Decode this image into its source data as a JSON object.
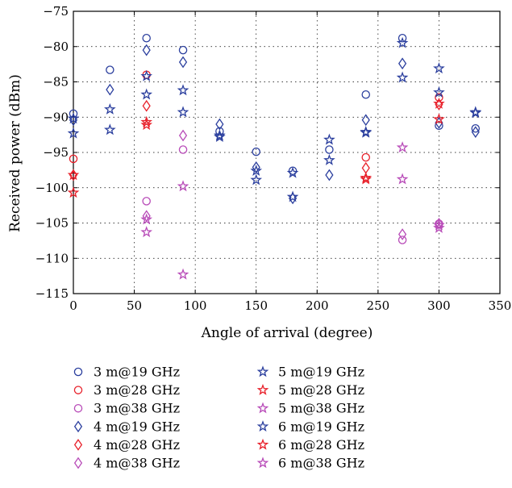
{
  "chart_data": {
    "type": "scatter",
    "xlabel": "Angle of arrival (degree)",
    "ylabel": "Received power (dBm)",
    "xlim": [
      0,
      350
    ],
    "ylim": [
      -115,
      -75
    ],
    "xticks": [
      "0",
      "50",
      "100",
      "150",
      "200",
      "250",
      "300",
      "350"
    ],
    "yticks": [
      "−75",
      "−80",
      "−85",
      "−90",
      "−95",
      "−100",
      "−105",
      "−110",
      "−115"
    ],
    "grid": "dotted",
    "legend_position": "bottom",
    "series": [
      {
        "name": "3 m@19 GHz",
        "marker": "circle",
        "color": "#2b3f9e",
        "points": [
          [
            0,
            -89.5
          ],
          [
            30,
            -83.3
          ],
          [
            60,
            -78.8
          ],
          [
            90,
            -80.5
          ],
          [
            120,
            -92
          ],
          [
            150,
            -94.9
          ],
          [
            180,
            -97.6
          ],
          [
            210,
            -94.6
          ],
          [
            240,
            -86.8
          ],
          [
            270,
            -78.8
          ],
          [
            300,
            -91.2
          ],
          [
            330,
            -91.6
          ]
        ]
      },
      {
        "name": "3 m@28 GHz",
        "marker": "circle",
        "color": "#e8202a",
        "points": [
          [
            0,
            -95.9
          ],
          [
            60,
            -84
          ],
          [
            240,
            -95.7
          ],
          [
            300,
            -87.2
          ]
        ]
      },
      {
        "name": "3 m@38 GHz",
        "marker": "circle",
        "color": "#b84bb8",
        "points": [
          [
            60,
            -101.9
          ],
          [
            90,
            -94.6
          ],
          [
            270,
            -107.4
          ],
          [
            300,
            -105.1
          ]
        ]
      },
      {
        "name": "4 m@19 GHz",
        "marker": "diamond",
        "color": "#2b3f9e",
        "points": [
          [
            0,
            -90.4
          ],
          [
            30,
            -86.1
          ],
          [
            60,
            -80.5
          ],
          [
            90,
            -82.2
          ],
          [
            120,
            -91
          ],
          [
            150,
            -97.1
          ],
          [
            180,
            -101.5
          ],
          [
            210,
            -98.2
          ],
          [
            240,
            -90.4
          ],
          [
            270,
            -82.4
          ],
          [
            300,
            -90.8
          ],
          [
            330,
            -92.1
          ]
        ]
      },
      {
        "name": "4 m@28 GHz",
        "marker": "diamond",
        "color": "#e8202a",
        "points": [
          [
            0,
            -98.2
          ],
          [
            60,
            -88.4
          ],
          [
            240,
            -97.2
          ],
          [
            300,
            -88.2
          ]
        ]
      },
      {
        "name": "4 m@38 GHz",
        "marker": "diamond",
        "color": "#b84bb8",
        "points": [
          [
            60,
            -104
          ],
          [
            90,
            -92.6
          ],
          [
            270,
            -106.6
          ],
          [
            300,
            -105.1
          ]
        ]
      },
      {
        "name": "5 m@19 GHz",
        "marker": "star",
        "color": "#2b3f9e",
        "points": [
          [
            0,
            -92.3
          ],
          [
            30,
            -88.9
          ],
          [
            60,
            -84.2
          ],
          [
            90,
            -86.2
          ],
          [
            120,
            -92.8
          ],
          [
            150,
            -98.9
          ],
          [
            180,
            -97.9
          ],
          [
            210,
            -96.1
          ],
          [
            240,
            -92.2
          ],
          [
            270,
            -79.5
          ],
          [
            300,
            -86.5
          ],
          [
            330,
            -89.3
          ]
        ]
      },
      {
        "name": "5 m@28 GHz",
        "marker": "star",
        "color": "#e8202a",
        "points": [
          [
            0,
            -100.7
          ],
          [
            60,
            -90.7
          ],
          [
            240,
            -98.8
          ],
          [
            300,
            -90.3
          ]
        ]
      },
      {
        "name": "5 m@38 GHz",
        "marker": "star",
        "color": "#b84bb8",
        "points": [
          [
            60,
            -106.3
          ],
          [
            90,
            -99.8
          ],
          [
            270,
            -98.8
          ],
          [
            300,
            -105.7
          ]
        ]
      },
      {
        "name": "6 m@19 GHz",
        "marker": "star",
        "color": "#2b3f9e",
        "points": [
          [
            0,
            -90.2
          ],
          [
            30,
            -91.8
          ],
          [
            60,
            -86.8
          ],
          [
            90,
            -89.3
          ],
          [
            120,
            -92.6
          ],
          [
            150,
            -97.6
          ],
          [
            180,
            -101.3
          ],
          [
            210,
            -93.2
          ],
          [
            240,
            -92.1
          ],
          [
            270,
            -84.4
          ],
          [
            300,
            -83.1
          ],
          [
            330,
            -89.4
          ]
        ]
      },
      {
        "name": "6 m@28 GHz",
        "marker": "star",
        "color": "#e8202a",
        "points": [
          [
            0,
            -98.2
          ],
          [
            60,
            -91.1
          ],
          [
            240,
            -98.6
          ],
          [
            300,
            -88.1
          ]
        ]
      },
      {
        "name": "6 m@38 GHz",
        "marker": "star",
        "color": "#b84bb8",
        "points": [
          [
            60,
            -104.5
          ],
          [
            90,
            -112.3
          ],
          [
            270,
            -94.3
          ],
          [
            300,
            -105.3
          ]
        ]
      }
    ]
  }
}
